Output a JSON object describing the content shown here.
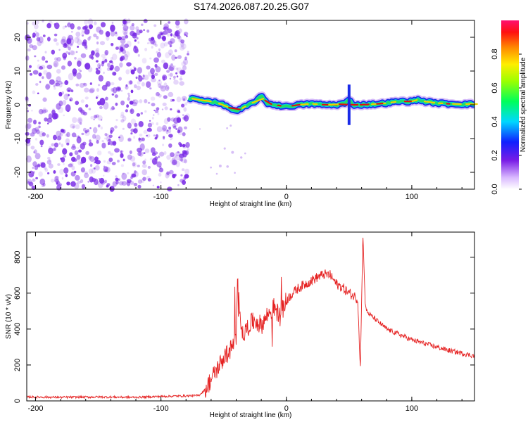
{
  "title": "S174.2026.087.20.25.G07",
  "colors": {
    "snr_line": "#e52020",
    "dots": "#7a2be6",
    "band_core": "#e01010",
    "band_mid": "#22dd66",
    "band_edge": "#1a2be8",
    "background": "#ffffff",
    "axis": "#000000"
  },
  "chart_data": [
    {
      "type": "heatmap",
      "title": "S174.2026.087.20.25.G07",
      "xlabel": "Height of straight line (km)",
      "ylabel": "Frequency (Hz)",
      "xlim": [
        -207,
        150
      ],
      "ylim": [
        -25,
        25
      ],
      "xticks": [
        "-200",
        "-100",
        "0",
        "100"
      ],
      "xtick_values": [
        -200,
        -100,
        0,
        100
      ],
      "yticks": [
        "20",
        "10",
        "0",
        "-10",
        "-20"
      ],
      "ytick_values": [
        20,
        10,
        0,
        -10,
        -20
      ],
      "noise_region_x": [
        -207,
        -78
      ],
      "signal_ridge": {
        "x": [
          -78,
          -70,
          -60,
          -50,
          -45,
          -40,
          -35,
          -30,
          -25,
          -20,
          -15,
          -10,
          0,
          10,
          20,
          30,
          40,
          47,
          50,
          53,
          60,
          70,
          80,
          90,
          100,
          105,
          110,
          120,
          130,
          140,
          150
        ],
        "y": [
          2,
          1.5,
          1,
          0,
          -1,
          -2,
          -1,
          0,
          1,
          2.5,
          0.5,
          0,
          -0.5,
          0,
          0.3,
          0,
          0,
          0.5,
          1.5,
          0,
          0,
          0.2,
          0.5,
          1,
          1,
          1.5,
          1,
          0.5,
          0.3,
          0.2,
          0.2
        ]
      },
      "colorbar": {
        "label": "Normalized spectral amplitude",
        "ticks": [
          "0.0",
          "0.2",
          "0.4",
          "0.6",
          "0.8"
        ],
        "tick_values": [
          0.0,
          0.2,
          0.4,
          0.6,
          0.8
        ],
        "range": [
          0,
          1
        ]
      }
    },
    {
      "type": "line",
      "xlabel": "Height of straight line (km)",
      "ylabel": "SNR (10 * v/v)",
      "xlim": [
        -207,
        150
      ],
      "ylim": [
        0,
        940
      ],
      "xticks": [
        "-200",
        "-100",
        "0",
        "100"
      ],
      "xtick_values": [
        -200,
        -100,
        0,
        100
      ],
      "yticks": [
        "0",
        "200",
        "400",
        "600",
        "800"
      ],
      "ytick_values": [
        0,
        200,
        400,
        600,
        800
      ],
      "series": [
        {
          "name": "SNR",
          "x": [
            -207,
            -180,
            -150,
            -120,
            -100,
            -80,
            -70,
            -65,
            -60,
            -55,
            -50,
            -45,
            -42,
            -40,
            -39,
            -35,
            -30,
            -25,
            -20,
            -15,
            -10,
            -5,
            0,
            5,
            10,
            15,
            20,
            25,
            30,
            35,
            40,
            45,
            50,
            55,
            57,
            59,
            61,
            63,
            65,
            70,
            80,
            90,
            100,
            110,
            120,
            130,
            140,
            150
          ],
          "y": [
            22,
            20,
            22,
            20,
            25,
            28,
            30,
            60,
            120,
            180,
            240,
            280,
            320,
            340,
            660,
            360,
            420,
            450,
            420,
            480,
            520,
            470,
            560,
            600,
            630,
            650,
            670,
            690,
            705,
            700,
            650,
            630,
            600,
            580,
            560,
            180,
            940,
            520,
            490,
            460,
            400,
            370,
            340,
            320,
            300,
            280,
            265,
            250
          ]
        }
      ]
    }
  ]
}
